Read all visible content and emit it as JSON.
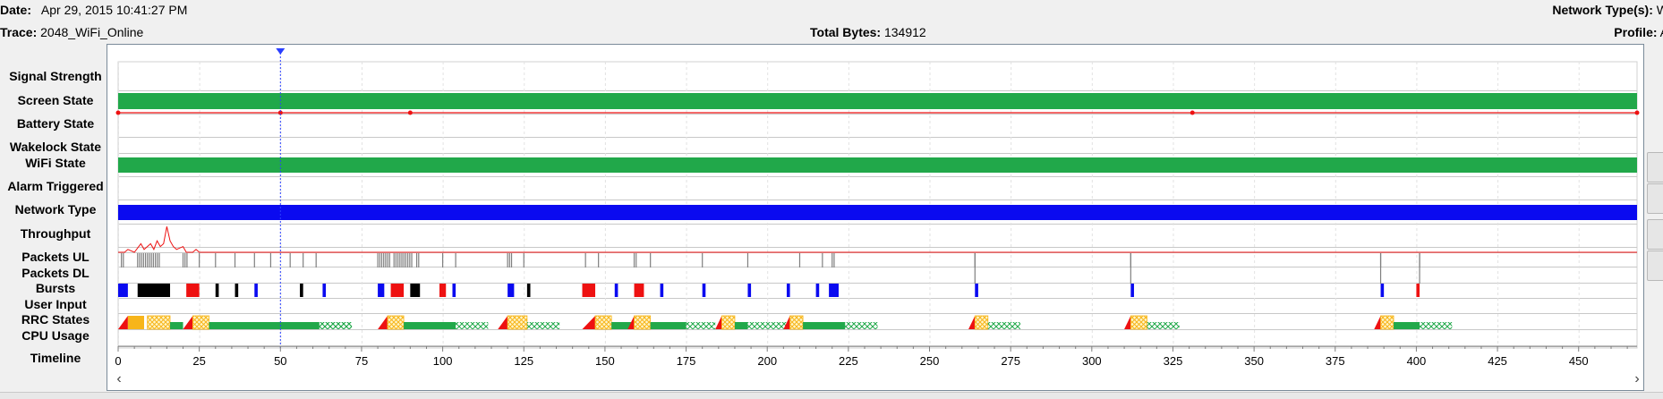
{
  "header": {
    "date_label": "Date:",
    "date_value": "Apr 29, 2015 10:41:27 PM",
    "trace_label": "Trace:",
    "trace_value": "2048_WiFi_Online",
    "total_bytes_label": "Total Bytes:",
    "total_bytes_value": "134912",
    "network_types_label": "Network Type(s):",
    "network_types_value": "W",
    "profile_label": "Profile:",
    "profile_value": "A"
  },
  "rows": [
    "Signal Strength",
    "Screen State",
    "Battery State",
    "Wakelock State",
    "WiFi State",
    "Alarm Triggered",
    "Network Type",
    "Throughput",
    "Packets UL",
    "Packets DL",
    "Bursts",
    "User Input",
    "RRC States",
    "CPU Usage",
    "Timeline"
  ],
  "colors": {
    "green": "#21a84a",
    "blue": "#0a0af0",
    "red": "#ee1111",
    "gray": "#7f7f7f",
    "black": "#000000",
    "yellow": "#f7b51a",
    "crosshair": "#2a3fff"
  },
  "scroll": {
    "left_icon": "arrow-left-icon",
    "right_icon": "arrow-right-icon"
  },
  "chart_data": {
    "type": "timeline",
    "x_unit": "seconds",
    "xlim": [
      0,
      468
    ],
    "ticks": [
      0,
      25,
      50,
      75,
      100,
      125,
      150,
      175,
      200,
      225,
      250,
      275,
      300,
      325,
      350,
      375,
      400,
      425,
      450
    ],
    "crosshair_x": 50,
    "screen_state": {
      "on": [
        [
          0,
          468
        ]
      ]
    },
    "battery_markers": [
      0,
      50,
      90,
      331,
      468
    ],
    "wifi_state": {
      "connected": [
        [
          0,
          468
        ]
      ]
    },
    "network_type": {
      "segments": [
        [
          0,
          468
        ]
      ]
    },
    "throughput_spikes": [
      [
        0,
        0
      ],
      [
        2,
        0
      ],
      [
        3,
        1
      ],
      [
        5,
        0
      ],
      [
        7,
        3
      ],
      [
        8,
        1
      ],
      [
        9,
        2
      ],
      [
        10,
        3
      ],
      [
        11,
        1
      ],
      [
        12,
        4
      ],
      [
        13,
        2
      ],
      [
        14,
        3
      ],
      [
        15,
        9
      ],
      [
        16,
        4
      ],
      [
        17,
        2
      ],
      [
        18,
        1
      ],
      [
        20,
        2
      ],
      [
        21,
        0
      ],
      [
        23,
        0
      ],
      [
        24,
        1
      ],
      [
        25,
        0
      ],
      [
        28,
        0
      ]
    ],
    "packets_ul": [
      [
        1,
        2
      ],
      [
        6,
        12
      ],
      [
        20,
        3
      ],
      [
        25,
        1
      ],
      [
        30,
        1
      ],
      [
        36,
        1
      ],
      [
        42,
        1
      ],
      [
        47,
        1
      ],
      [
        53,
        1
      ],
      [
        57,
        1
      ],
      [
        61,
        1
      ],
      [
        80,
        7
      ],
      [
        85,
        10
      ],
      [
        92,
        2
      ],
      [
        100,
        1
      ],
      [
        104,
        1
      ],
      [
        120,
        3
      ],
      [
        125,
        1
      ],
      [
        144,
        1
      ],
      [
        148,
        1
      ],
      [
        159,
        2
      ],
      [
        164,
        1
      ],
      [
        180,
        1
      ],
      [
        194,
        1
      ],
      [
        210,
        1
      ],
      [
        217,
        1
      ],
      [
        220,
        2
      ],
      [
        264,
        1
      ],
      [
        312,
        1
      ],
      [
        389,
        1
      ],
      [
        401,
        1
      ]
    ],
    "bursts": [
      {
        "x": [
          0,
          3
        ],
        "c": "blue"
      },
      {
        "x": [
          6,
          16
        ],
        "c": "black"
      },
      {
        "x": [
          21,
          25
        ],
        "c": "red"
      },
      {
        "x": [
          30,
          31
        ],
        "c": "black"
      },
      {
        "x": [
          36,
          37
        ],
        "c": "black"
      },
      {
        "x": [
          42,
          43
        ],
        "c": "blue"
      },
      {
        "x": [
          56,
          57
        ],
        "c": "black"
      },
      {
        "x": [
          63,
          64
        ],
        "c": "blue"
      },
      {
        "x": [
          80,
          82
        ],
        "c": "blue"
      },
      {
        "x": [
          84,
          88
        ],
        "c": "red"
      },
      {
        "x": [
          90,
          93
        ],
        "c": "black"
      },
      {
        "x": [
          99,
          101
        ],
        "c": "red"
      },
      {
        "x": [
          103,
          104
        ],
        "c": "blue"
      },
      {
        "x": [
          120,
          122
        ],
        "c": "blue"
      },
      {
        "x": [
          126,
          127
        ],
        "c": "black"
      },
      {
        "x": [
          143,
          147
        ],
        "c": "red"
      },
      {
        "x": [
          153,
          154
        ],
        "c": "blue"
      },
      {
        "x": [
          159,
          162
        ],
        "c": "red"
      },
      {
        "x": [
          167,
          168
        ],
        "c": "blue"
      },
      {
        "x": [
          180,
          181
        ],
        "c": "blue"
      },
      {
        "x": [
          194,
          195
        ],
        "c": "blue"
      },
      {
        "x": [
          206,
          207
        ],
        "c": "blue"
      },
      {
        "x": [
          215,
          216
        ],
        "c": "blue"
      },
      {
        "x": [
          219,
          222
        ],
        "c": "blue"
      },
      {
        "x": [
          264,
          265
        ],
        "c": "blue"
      },
      {
        "x": [
          312,
          313
        ],
        "c": "blue"
      },
      {
        "x": [
          389,
          390
        ],
        "c": "blue"
      },
      {
        "x": [
          400,
          401
        ],
        "c": "red"
      }
    ],
    "rrc": [
      {
        "start": 0,
        "promo": 3,
        "dch": [
          3,
          8
        ],
        "fach_h": [
          8,
          9
        ],
        "fach": [
          9,
          16
        ],
        "g": [
          16,
          20
        ],
        "tail": [
          62,
          72
        ]
      },
      {
        "start": 20,
        "promo": 23,
        "fach": [
          23,
          28
        ],
        "g": [
          28,
          62
        ],
        "tail": [
          62,
          72
        ]
      },
      {
        "start": 80,
        "promo": 83,
        "fach": [
          83,
          88
        ],
        "g": [
          88,
          104
        ],
        "tail": [
          104,
          114
        ]
      },
      {
        "start": 117,
        "promo": 120,
        "fach": [
          120,
          126
        ],
        "g": [
          126,
          126
        ],
        "tail": [
          126,
          136
        ]
      },
      {
        "start": 143,
        "promo": 147,
        "fach": [
          147,
          152
        ],
        "g": [
          152,
          159
        ],
        "tail": [
          136,
          136
        ]
      },
      {
        "start": 157,
        "promo": 159,
        "fach": [
          159,
          164
        ],
        "g": [
          164,
          175
        ],
        "tail": [
          175,
          184
        ]
      },
      {
        "start": 184,
        "promo": 186,
        "fach": [
          186,
          190
        ],
        "g": [
          190,
          194
        ],
        "tail": [
          194,
          206
        ]
      },
      {
        "start": 205,
        "promo": 207,
        "fach": [
          207,
          211
        ],
        "g": [
          211,
          224
        ],
        "tail": [
          224,
          234
        ]
      },
      {
        "start": 262,
        "promo": 264,
        "fach": [
          264,
          268
        ],
        "g": [
          268,
          268
        ],
        "tail": [
          268,
          278
        ]
      },
      {
        "start": 310,
        "promo": 312,
        "fach": [
          312,
          317
        ],
        "g": [
          317,
          317
        ],
        "tail": [
          317,
          327
        ]
      },
      {
        "start": 387,
        "promo": 389,
        "fach": [
          389,
          393
        ],
        "g": [
          393,
          401
        ],
        "tail": [
          401,
          411
        ]
      }
    ]
  }
}
